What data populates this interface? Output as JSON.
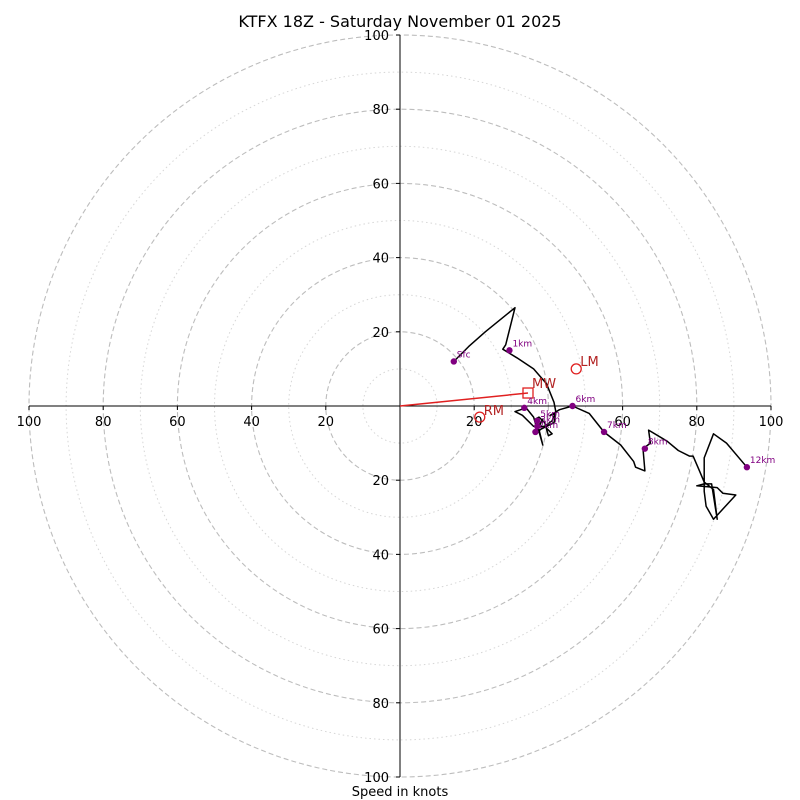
{
  "chart_data": {
    "type": "hodograph",
    "title": "KTFX 18Z - Saturday November 01 2025",
    "xlabel": "Speed in knots",
    "rings": [
      20,
      40,
      60,
      80,
      100
    ],
    "minor_rings": [
      10,
      30,
      50,
      70,
      90
    ],
    "x_ticks": [
      {
        "value": -100,
        "label": "100"
      },
      {
        "value": -80,
        "label": "80"
      },
      {
        "value": -60,
        "label": "60"
      },
      {
        "value": -40,
        "label": "40"
      },
      {
        "value": -20,
        "label": "20"
      },
      {
        "value": 20,
        "label": "20"
      },
      {
        "value": 60,
        "label": "60"
      },
      {
        "value": 80,
        "label": "80"
      },
      {
        "value": 100,
        "label": "100"
      }
    ],
    "y_ticks": [
      {
        "value": 100,
        "label": "100"
      },
      {
        "value": 80,
        "label": "80"
      },
      {
        "value": 60,
        "label": "60"
      },
      {
        "value": 40,
        "label": "40"
      },
      {
        "value": 20,
        "label": "20"
      },
      {
        "value": -20,
        "label": "20"
      },
      {
        "value": -40,
        "label": "40"
      },
      {
        "value": -60,
        "label": "60"
      },
      {
        "value": -80,
        "label": "80"
      },
      {
        "value": -100,
        "label": "100"
      }
    ],
    "xlim": [
      -100,
      100
    ],
    "ylim": [
      -100,
      100
    ],
    "trace": [
      [
        14.5,
        12.0
      ],
      [
        18.5,
        16.0
      ],
      [
        23.0,
        20.0
      ],
      [
        31.0,
        26.5
      ],
      [
        28.5,
        16.5
      ],
      [
        27.7,
        15.3
      ],
      [
        31.5,
        13.0
      ],
      [
        36.0,
        10.0
      ],
      [
        39.5,
        6.0
      ],
      [
        41.5,
        1.0
      ],
      [
        42.0,
        -1.5
      ],
      [
        41.0,
        -4.0
      ],
      [
        39.0,
        -5.5
      ],
      [
        36.0,
        -5.5
      ],
      [
        33.0,
        -2.5
      ],
      [
        31.0,
        -1.5
      ],
      [
        34.0,
        -0.5
      ],
      [
        36.0,
        -3.0
      ],
      [
        37.0,
        -6.5
      ],
      [
        38.5,
        -3.5
      ],
      [
        36.5,
        -7.0
      ],
      [
        37.0,
        -6.5
      ],
      [
        37.0,
        -7.0
      ],
      [
        36.5,
        -7.5
      ],
      [
        39.5,
        -5.0
      ],
      [
        39.0,
        -5.5
      ],
      [
        41.0,
        -7.5
      ],
      [
        40.0,
        -8.0
      ],
      [
        39.0,
        -4.5
      ],
      [
        37.5,
        -3.0
      ],
      [
        36.5,
        -3.5
      ],
      [
        37.5,
        -7.0
      ],
      [
        38.5,
        -10.5
      ],
      [
        37.5,
        -6.5
      ],
      [
        39.5,
        -5.5
      ],
      [
        41.5,
        -4.5
      ],
      [
        42.0,
        -2.0
      ],
      [
        40.5,
        -2.5
      ],
      [
        43.0,
        -1.0
      ],
      [
        46.5,
        0.0
      ],
      [
        51.0,
        -2.0
      ],
      [
        55.0,
        -7.0
      ],
      [
        59.5,
        -10.5
      ],
      [
        63.0,
        -15.0
      ],
      [
        63.5,
        -16.5
      ],
      [
        66.0,
        -17.5
      ],
      [
        65.5,
        -11.5
      ],
      [
        67.5,
        -10.0
      ],
      [
        67.0,
        -6.5
      ],
      [
        72.0,
        -9.5
      ],
      [
        75.0,
        -12.0
      ],
      [
        78.0,
        -13.5
      ],
      [
        79.0,
        -13.5
      ],
      [
        80.5,
        -17.0
      ],
      [
        82.0,
        -20.5
      ],
      [
        84.5,
        -22.5
      ],
      [
        85.5,
        -30.5
      ],
      [
        84.0,
        -21.0
      ],
      [
        82.0,
        -21.0
      ],
      [
        80.0,
        -21.5
      ],
      [
        85.5,
        -22.0
      ],
      [
        87.0,
        -23.5
      ],
      [
        90.5,
        -24.0
      ],
      [
        84.5,
        -30.5
      ],
      [
        82.5,
        -27.0
      ],
      [
        82.0,
        -23.0
      ],
      [
        82.0,
        -14.0
      ],
      [
        84.5,
        -7.5
      ],
      [
        88.0,
        -10.0
      ],
      [
        93.5,
        -16.5
      ]
    ],
    "height_markers": [
      {
        "label": "Sfc",
        "u": 14.5,
        "v": 12.0
      },
      {
        "label": "1km",
        "u": 29.5,
        "v": 15.0
      },
      {
        "label": "4km",
        "u": 33.5,
        "v": -0.5
      },
      {
        "label": "2km",
        "u": 36.5,
        "v": -7.0
      },
      {
        "label": "3km",
        "u": 37.0,
        "v": -5.5
      },
      {
        "label": "5km",
        "u": 37.0,
        "v": -4.0
      },
      {
        "label": "6km",
        "u": 46.5,
        "v": 0.0
      },
      {
        "label": "7km",
        "u": 55.0,
        "v": -7.0
      },
      {
        "label": "8km",
        "u": 66.0,
        "v": -11.5
      },
      {
        "label": "12km",
        "u": 93.5,
        "v": -16.5
      }
    ],
    "storm_motion": {
      "mean_wind": {
        "label": "MW",
        "u": 34.5,
        "v": 3.5
      },
      "left_mover": {
        "label": "LM",
        "u": 47.5,
        "v": 10.0
      },
      "right_mover": {
        "label": "RM",
        "u": 21.5,
        "v": -3.0
      }
    },
    "colors": {
      "trace": "#000000",
      "marker": "#800080",
      "motion": "#e02020",
      "motion_text": "#b22222",
      "ring": "#bdbdbd",
      "minor_ring": "#d6d6d6",
      "axis": "#000000"
    }
  }
}
